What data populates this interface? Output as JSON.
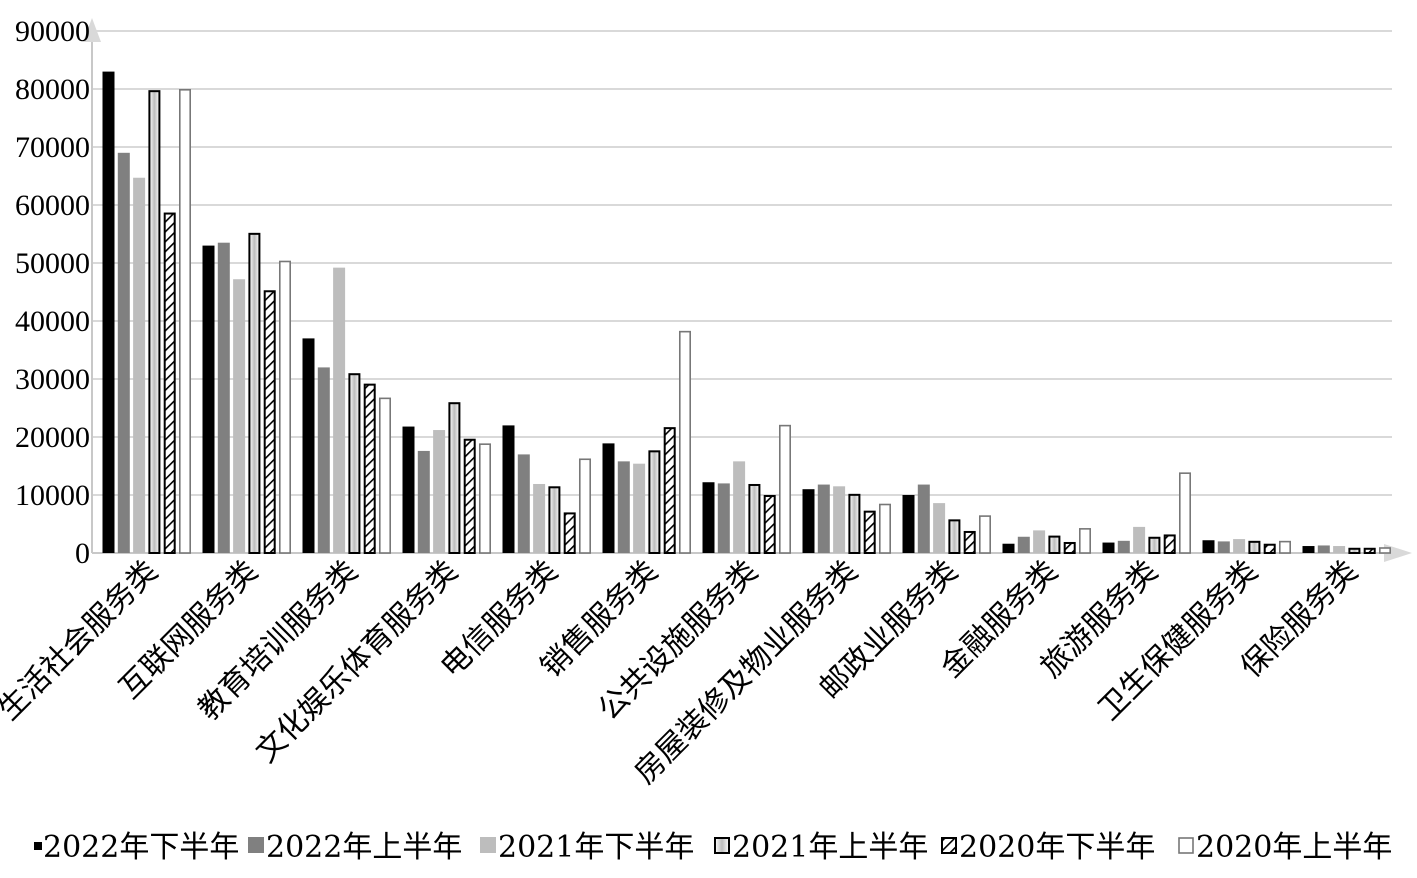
{
  "chart_data": {
    "type": "bar",
    "categories": [
      "生活社会服务类",
      "互联网服务类",
      "教育培训服务类",
      "文化娱乐体育服务类",
      "电信服务类",
      "销售服务类",
      "公共设施服务类",
      "房屋装修及物业服务类",
      "邮政业服务类",
      "金融服务类",
      "旅游服务类",
      "卫生保健服务类",
      "保险服务类"
    ],
    "series": [
      {
        "name": "2022年下半年",
        "style": "solid-black",
        "values": [
          83000,
          53000,
          37000,
          21800,
          22000,
          18900,
          12200,
          11000,
          10000,
          1600,
          1800,
          2200,
          1200
        ]
      },
      {
        "name": "2022年上半年",
        "style": "solid-darkgray",
        "values": [
          69000,
          53500,
          32000,
          17600,
          17000,
          15800,
          12000,
          11800,
          11800,
          2800,
          2100,
          2000,
          1300
        ]
      },
      {
        "name": "2021年下半年",
        "style": "solid-lightgray",
        "values": [
          64700,
          47200,
          49200,
          21200,
          11900,
          15400,
          15800,
          11500,
          8600,
          3900,
          4500,
          2400,
          1200
        ]
      },
      {
        "name": "2021年上半年",
        "style": "gray-with-black-border",
        "values": [
          79800,
          55200,
          31000,
          26000,
          11500,
          17700,
          11900,
          10200,
          5800,
          3000,
          2800,
          2100,
          900
        ]
      },
      {
        "name": "2020年下半年",
        "style": "hatched",
        "values": [
          58700,
          45300,
          29200,
          19700,
          7000,
          21700,
          10000,
          7300,
          3800,
          1900,
          3200,
          1600,
          900
        ]
      },
      {
        "name": "2020年上半年",
        "style": "outline",
        "values": [
          80000,
          50400,
          26800,
          18900,
          16300,
          38300,
          22100,
          8500,
          6500,
          4300,
          13900,
          2100,
          1000
        ]
      }
    ],
    "ylim": [
      0,
      90000
    ],
    "yticks": [
      "0",
      "10000",
      "20000",
      "30000",
      "40000",
      "50000",
      "60000",
      "70000",
      "80000",
      "90000"
    ],
    "grid": true,
    "legend_position": "bottom",
    "colors": {
      "black": "#000000",
      "dark_gray": "#808080",
      "light_gray": "#bdbdbd",
      "grid": "#d9d9d9",
      "axis": "#c8c8c8"
    }
  }
}
